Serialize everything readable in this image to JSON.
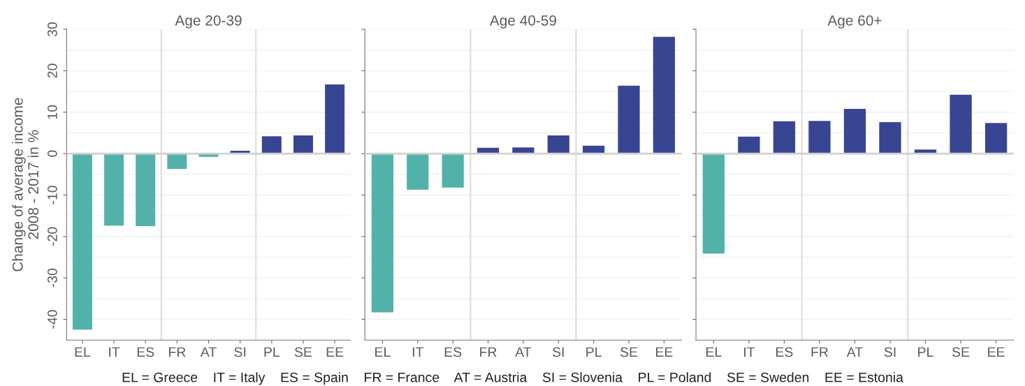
{
  "chart_data": [
    {
      "type": "bar",
      "title": "Age 20-39",
      "ylabel": "Change of average income\n2008 - 2017 in %",
      "categories": [
        "EL",
        "IT",
        "ES",
        "FR",
        "AT",
        "SI",
        "PL",
        "SE",
        "EE"
      ],
      "values": [
        -42.5,
        -17.4,
        -17.5,
        -3.7,
        -0.8,
        0.7,
        4.2,
        4.4,
        16.7
      ],
      "colors": [
        "#52b2aa",
        "#52b2aa",
        "#52b2aa",
        "#52b2aa",
        "#52b2aa",
        "#384592",
        "#384592",
        "#384592",
        "#384592"
      ],
      "ylim": [
        -45,
        30
      ],
      "yticks": [
        -40,
        {
          "value": -35,
          "label": null
        },
        -30,
        {
          "value": -25,
          "label": null
        },
        -20,
        {
          "value": -15,
          "label": null
        },
        -10,
        {
          "value": -5,
          "label": null
        },
        0,
        {
          "value": 5,
          "label": null
        },
        10,
        {
          "value": 15,
          "label": null
        },
        20,
        {
          "value": 25,
          "label": null
        },
        30
      ],
      "grid": "y",
      "ref_lines": [
        {
          "axis": "y",
          "value": 0,
          "color": "#d0d0d0"
        }
      ],
      "annotations": [
        "EL = Greece    IT = Italy    ES = Spain    FR = France    AT = Austria    SI = Slovenia    PL = Poland    SE = Sweden    EE = Estonia"
      ]
    },
    {
      "type": "bar",
      "title": "Age 40-59",
      "categories": [
        "EL",
        "IT",
        "ES",
        "FR",
        "AT",
        "SI",
        "PL",
        "SE",
        "EE"
      ],
      "values": [
        -38.3,
        -8.7,
        -8.2,
        1.4,
        1.5,
        4.4,
        1.9,
        16.4,
        28.2
      ],
      "colors": [
        "#52b2aa",
        "#52b2aa",
        "#52b2aa",
        "#384592",
        "#384592",
        "#384592",
        "#384592",
        "#384592",
        "#384592"
      ],
      "ylim": [
        -45,
        30
      ],
      "yticks": [
        -40,
        {
          "value": -35,
          "label": null
        },
        -30,
        {
          "value": -25,
          "label": null
        },
        -20,
        {
          "value": -15,
          "label": null
        },
        -10,
        {
          "value": -5,
          "label": null
        },
        0,
        {
          "value": 5,
          "label": null
        },
        10,
        {
          "value": 15,
          "label": null
        },
        20,
        {
          "value": 25,
          "label": null
        },
        30
      ],
      "grid": "y",
      "tick_labels": "x",
      "ref_lines": [
        {
          "axis": "y",
          "value": 0,
          "color": "#d0d0d0"
        }
      ]
    },
    {
      "type": "bar",
      "title": "Age 60+",
      "categories": [
        "EL",
        "IT",
        "ES",
        "FR",
        "AT",
        "SI",
        "PL",
        "SE",
        "EE"
      ],
      "values": [
        -24.1,
        4.1,
        7.8,
        7.9,
        10.8,
        7.6,
        1.0,
        14.2,
        7.4
      ],
      "colors": [
        "#52b2aa",
        "#384592",
        "#384592",
        "#384592",
        "#384592",
        "#384592",
        "#384592",
        "#384592",
        "#384592"
      ],
      "ylim": [
        -45,
        30
      ],
      "yticks": [
        -40,
        {
          "value": -35,
          "label": null
        },
        -30,
        {
          "value": -25,
          "label": null
        },
        -20,
        {
          "value": -15,
          "label": null
        },
        -10,
        {
          "value": -5,
          "label": null
        },
        0,
        {
          "value": 5,
          "label": null
        },
        10,
        {
          "value": 15,
          "label": null
        },
        20,
        {
          "value": 25,
          "label": null
        },
        30
      ],
      "grid": "y",
      "tick_labels": "x",
      "ref_lines": [
        {
          "axis": "y",
          "value": 0,
          "color": "#d0d0d0"
        }
      ]
    }
  ]
}
